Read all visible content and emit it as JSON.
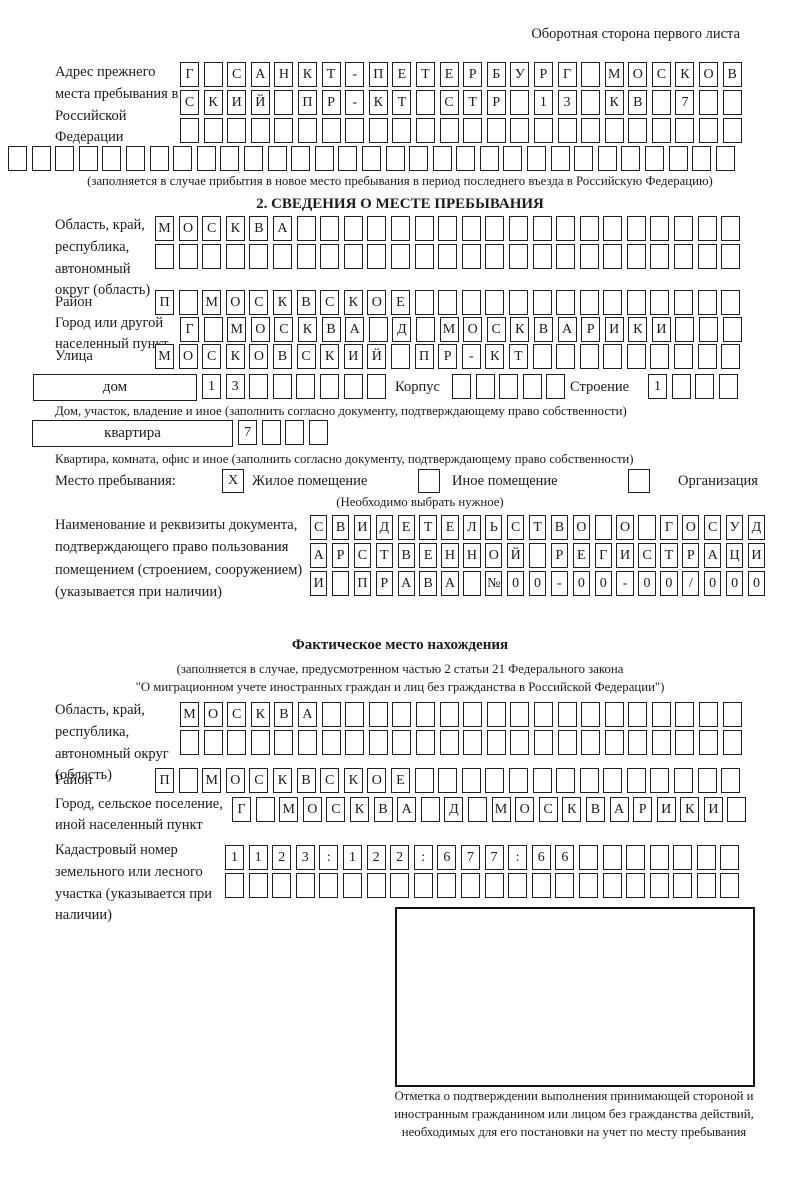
{
  "header": "Оборотная сторона первого листа",
  "prev_address": {
    "label": "Адрес прежнего места пребывания в Российской Федерации",
    "rows": [
      {
        "text": "Г САНКТ-ПЕТЕРБУРГ МОСКОВ",
        "len": 24
      },
      {
        "text": "СКИЙ ПР-КТ СТР 13 КВ 7",
        "len": 24
      },
      {
        "text": "",
        "len": 24
      },
      {
        "text": "",
        "len": 31
      }
    ],
    "note": "(заполняется в случае прибытия в новое место пребывания в период последнего въезда в Российскую Федерацию)"
  },
  "section2": {
    "title": "2. СВЕДЕНИЯ О МЕСТЕ ПРЕБЫВАНИЯ",
    "region": {
      "label": "Область, край, республика, автономный округ (область)",
      "rows": [
        {
          "text": "МОСКВА",
          "len": 25
        },
        {
          "text": "",
          "len": 25
        }
      ]
    },
    "district": {
      "label": "Район",
      "row": {
        "text": "П МОСКВСКОЕ",
        "len": 25
      }
    },
    "city": {
      "label": "Город или другой населенный пункт",
      "row": {
        "text": "Г МОСКВА Д МОСКВАРИКИ",
        "len": 24
      }
    },
    "street": {
      "label": "Улица",
      "row": {
        "text": "МОСКОВСКИЙ ПР-КТ",
        "len": 25
      }
    },
    "house": {
      "box_label": "дом",
      "digits": {
        "text": "13",
        "len": 8
      },
      "korpus_label": "Корпус",
      "korpus": {
        "text": "",
        "len": 5
      },
      "stroenie_label": "Строение",
      "stroenie": {
        "text": "1",
        "len": 4
      },
      "note": "Дом, участок, владение и иное (заполнить согласно документу, подтверждающему право собственности)"
    },
    "apartment": {
      "box_label": "квартира",
      "digits": {
        "text": "7",
        "len": 4
      },
      "note": "Квартира, комната, офис и иное (заполнить согласно документу, подтверждающему право собственности)"
    },
    "stay_type": {
      "label": "Место пребывания:",
      "options": [
        {
          "label": "Жилое помещение",
          "mark": "X"
        },
        {
          "label": "Иное помещение",
          "mark": ""
        },
        {
          "label": "Организация",
          "mark": ""
        }
      ],
      "note": "(Необходимо выбрать нужное)"
    },
    "document": {
      "label": "Наименование и реквизиты документа, подтверждающего право пользования помещением (строением, сооружением) (указывается при наличии)",
      "rows": [
        {
          "text": "СВИДЕТЕЛЬСТВО О ГОСУД",
          "len": 21
        },
        {
          "text": "АРСТВЕННОЙ РЕГИСТРАЦИ",
          "len": 21
        },
        {
          "text": "И ПРАВА №00-00-00/000",
          "len": 21
        }
      ]
    }
  },
  "actual_location": {
    "title": "Фактическое место нахождения",
    "note1": "(заполняется в случае, предусмотренном частью 2 статьи 21 Федерального закона",
    "note2": "\"О миграционном учете иностранных граждан и лиц без гражданства в Российской Федерации\")",
    "region": {
      "label": "Область, край, республика, автономный округ (область)",
      "rows": [
        {
          "text": "МОСКВА",
          "len": 24
        },
        {
          "text": "",
          "len": 24
        }
      ]
    },
    "district": {
      "label": "Район",
      "row": {
        "text": "П МОСКВСКОЕ",
        "len": 25
      }
    },
    "city": {
      "label": "Город, сельское поселение, иной населенный пункт",
      "row": {
        "text": "Г МОСКВА Д МОСКВАРИКИ",
        "len": 22
      }
    },
    "cadastre": {
      "label": "Кадастровый номер земельного или лесного участка (указывается при наличии)",
      "rows": [
        {
          "text": "1123:122:677:66",
          "len": 22
        },
        {
          "text": "",
          "len": 22
        }
      ]
    }
  },
  "stamp": {
    "caption": "Отметка о подтверждении выполнения принимающей стороной и иностранным гражданином или лицом без гражданства действий, необходимых для его постановки на учет по месту пребывания"
  }
}
